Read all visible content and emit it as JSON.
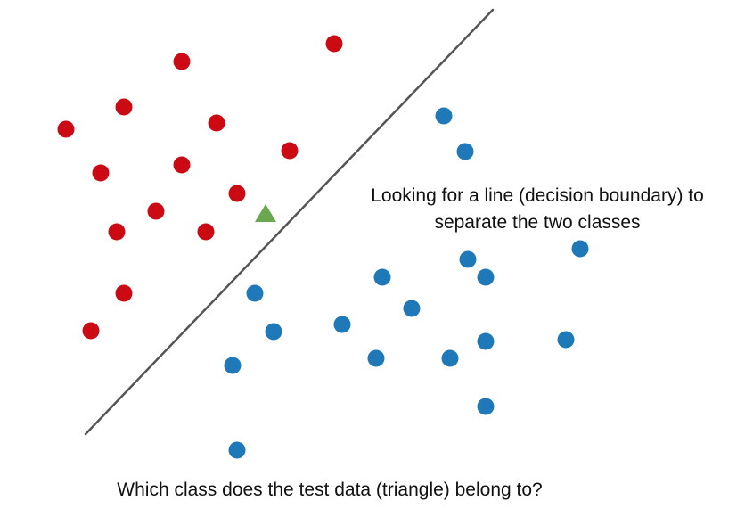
{
  "annotation": {
    "line1": "Looking for a line (decision boundary) to",
    "line2": "separate the two classes"
  },
  "question": "Which class does the test data (triangle) belong to?",
  "colors": {
    "class_red": "#cc0a14",
    "class_blue": "#1f78b8",
    "test_point": "#6aa84f",
    "boundary": "#555555"
  }
}
